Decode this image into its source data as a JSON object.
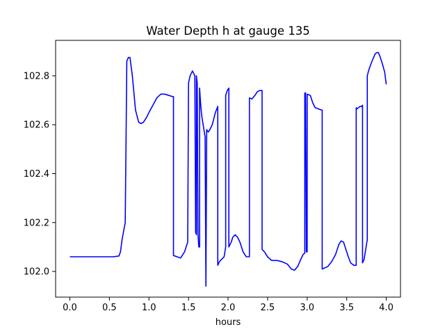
{
  "chart_data": {
    "type": "line",
    "title": "Water Depth h at gauge 135",
    "xlabel": "hours",
    "ylabel": "",
    "xlim": [
      -0.18,
      4.18
    ],
    "ylim": [
      101.895,
      102.945
    ],
    "xticks": [
      {
        "value": 0.0,
        "label": "0.0"
      },
      {
        "value": 0.5,
        "label": "0.5"
      },
      {
        "value": 1.0,
        "label": "1.0"
      },
      {
        "value": 1.5,
        "label": "1.5"
      },
      {
        "value": 2.0,
        "label": "2.0"
      },
      {
        "value": 2.5,
        "label": "2.5"
      },
      {
        "value": 3.0,
        "label": "3.0"
      },
      {
        "value": 3.5,
        "label": "3.5"
      },
      {
        "value": 4.0,
        "label": "4.0"
      }
    ],
    "yticks": [
      {
        "value": 102.0,
        "label": "102.0"
      },
      {
        "value": 102.2,
        "label": "102.2"
      },
      {
        "value": 102.4,
        "label": "102.4"
      },
      {
        "value": 102.6,
        "label": "102.6"
      },
      {
        "value": 102.8,
        "label": "102.8"
      }
    ],
    "grid": false,
    "series": [
      {
        "color": "#0000ff",
        "x": [
          0.0,
          0.3,
          0.55,
          0.62,
          0.64,
          0.66,
          0.7,
          0.72,
          0.72,
          0.74,
          0.76,
          0.79,
          0.83,
          0.87,
          0.9,
          0.93,
          0.97,
          1.0,
          1.05,
          1.1,
          1.15,
          1.2,
          1.25,
          1.3,
          1.31,
          1.31,
          1.4,
          1.45,
          1.49,
          1.5,
          1.5,
          1.52,
          1.55,
          1.58,
          1.59,
          1.6,
          1.6,
          1.61,
          1.62,
          1.63,
          1.64,
          1.64,
          1.65,
          1.66,
          1.66,
          1.67,
          1.69,
          1.71,
          1.72,
          1.72,
          1.73,
          1.73,
          1.75,
          1.77,
          1.8,
          1.84,
          1.87,
          1.87,
          1.89,
          1.92,
          1.95,
          1.97,
          1.97,
          1.99,
          2.01,
          2.01,
          2.04,
          2.06,
          2.09,
          2.12,
          2.15,
          2.19,
          2.23,
          2.27,
          2.27,
          2.3,
          2.34,
          2.37,
          2.4,
          2.43,
          2.43,
          2.46,
          2.5,
          2.55,
          2.62,
          2.68,
          2.75,
          2.8,
          2.84,
          2.88,
          2.92,
          2.95,
          2.97,
          2.97,
          2.98,
          2.99,
          2.99,
          3.0,
          3.0,
          3.04,
          3.07,
          3.1,
          3.14,
          3.18,
          3.19,
          3.19,
          3.26,
          3.31,
          3.36,
          3.4,
          3.43,
          3.46,
          3.49,
          3.52,
          3.55,
          3.59,
          3.62,
          3.62,
          3.63,
          3.65,
          3.67,
          3.69,
          3.7,
          3.7,
          3.72,
          3.76,
          3.76,
          3.78,
          3.82,
          3.86,
          3.88,
          3.9,
          3.92,
          3.95,
          3.98,
          4.0
        ],
        "y": [
          102.06,
          102.06,
          102.06,
          102.063,
          102.08,
          102.13,
          102.2,
          102.86,
          102.86,
          102.875,
          102.875,
          102.8,
          102.66,
          102.61,
          102.605,
          102.61,
          102.63,
          102.65,
          102.68,
          102.71,
          102.725,
          102.725,
          102.72,
          102.715,
          102.715,
          102.065,
          102.055,
          102.08,
          102.12,
          102.77,
          102.77,
          102.8,
          102.82,
          102.8,
          102.16,
          102.15,
          102.8,
          102.77,
          102.15,
          102.1,
          102.1,
          102.75,
          102.7,
          102.66,
          102.66,
          102.63,
          102.59,
          102.55,
          101.94,
          101.94,
          102.58,
          102.58,
          102.57,
          102.58,
          102.6,
          102.65,
          102.675,
          102.025,
          102.04,
          102.05,
          102.06,
          102.1,
          102.72,
          102.74,
          102.75,
          102.1,
          102.12,
          102.14,
          102.15,
          102.14,
          102.12,
          102.08,
          102.06,
          102.06,
          102.71,
          102.705,
          102.72,
          102.735,
          102.74,
          102.74,
          102.09,
          102.08,
          102.06,
          102.045,
          102.045,
          102.04,
          102.03,
          102.01,
          102.005,
          102.02,
          102.05,
          102.07,
          102.075,
          102.73,
          102.73,
          102.08,
          102.08,
          102.08,
          102.725,
          102.72,
          102.69,
          102.67,
          102.665,
          102.66,
          102.66,
          102.01,
          102.02,
          102.04,
          102.07,
          102.11,
          102.125,
          102.12,
          102.09,
          102.06,
          102.035,
          102.025,
          102.025,
          102.67,
          102.665,
          102.67,
          102.675,
          102.675,
          102.68,
          102.035,
          102.05,
          102.13,
          102.8,
          102.825,
          102.86,
          102.89,
          102.895,
          102.895,
          102.88,
          102.85,
          102.815,
          102.765
        ]
      }
    ]
  }
}
